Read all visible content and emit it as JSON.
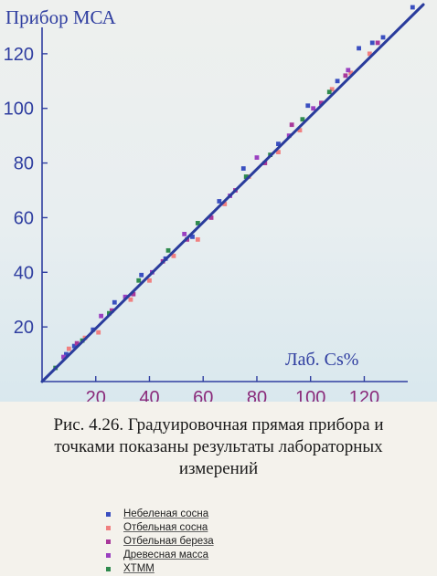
{
  "chart_data": {
    "type": "scatter",
    "ylabel": "Прибор МСА",
    "xlabel": "Лаб. Cs%",
    "xlim": [
      0,
      143
    ],
    "ylim": [
      0,
      138
    ],
    "xticks": [
      20,
      40,
      60,
      80,
      100,
      120
    ],
    "yticks": [
      20,
      40,
      60,
      80,
      100,
      120
    ],
    "fit_line": {
      "x": [
        0,
        142
      ],
      "y": [
        0,
        138
      ]
    },
    "series": [
      {
        "name": "Небеленая сосна",
        "color": "#3a4fc0",
        "points": [
          [
            9,
            10
          ],
          [
            12,
            13
          ],
          [
            19,
            19
          ],
          [
            27,
            29
          ],
          [
            37,
            39
          ],
          [
            46,
            45
          ],
          [
            56,
            53
          ],
          [
            66,
            66
          ],
          [
            75,
            78
          ],
          [
            88,
            87
          ],
          [
            99,
            101
          ],
          [
            110,
            110
          ],
          [
            118,
            122
          ],
          [
            123,
            124
          ],
          [
            127,
            126
          ],
          [
            138,
            137
          ]
        ]
      },
      {
        "name": "Отбельная сосна",
        "color": "#f08080",
        "points": [
          [
            10,
            12
          ],
          [
            16,
            16
          ],
          [
            21,
            18
          ],
          [
            33,
            30
          ],
          [
            40,
            37
          ],
          [
            49,
            46
          ],
          [
            58,
            52
          ],
          [
            68,
            65
          ],
          [
            77,
            75
          ],
          [
            88,
            84
          ],
          [
            96,
            92
          ],
          [
            108,
            107
          ],
          [
            115,
            113
          ],
          [
            122,
            120
          ]
        ]
      },
      {
        "name": "Отбельная береза",
        "color": "#a8389a",
        "points": [
          [
            13,
            14
          ],
          [
            26,
            26
          ],
          [
            34,
            32
          ],
          [
            45,
            44
          ],
          [
            54,
            52
          ],
          [
            63,
            60
          ],
          [
            72,
            70
          ],
          [
            83,
            80
          ],
          [
            93,
            94
          ],
          [
            104,
            102
          ],
          [
            113,
            112
          ],
          [
            125,
            124
          ]
        ]
      },
      {
        "name": "Древесная масса",
        "color": "#9a40c0",
        "points": [
          [
            8,
            9
          ],
          [
            22,
            24
          ],
          [
            31,
            31
          ],
          [
            41,
            40
          ],
          [
            53,
            54
          ],
          [
            70,
            68
          ],
          [
            80,
            82
          ],
          [
            92,
            90
          ],
          [
            101,
            100
          ],
          [
            114,
            114
          ]
        ]
      },
      {
        "name": "ХТММ",
        "color": "#2f8a4e",
        "points": [
          [
            5,
            5
          ],
          [
            15,
            15
          ],
          [
            25,
            25
          ],
          [
            36,
            37
          ],
          [
            47,
            48
          ],
          [
            58,
            58
          ],
          [
            76,
            75
          ],
          [
            85,
            83
          ],
          [
            97,
            96
          ],
          [
            107,
            106
          ]
        ]
      }
    ]
  },
  "caption": {
    "line1": "Рис. 4.26. Градуировочная прямая прибора и",
    "line2": "точками показаны результаты лабораторных",
    "line3": "измерений"
  }
}
